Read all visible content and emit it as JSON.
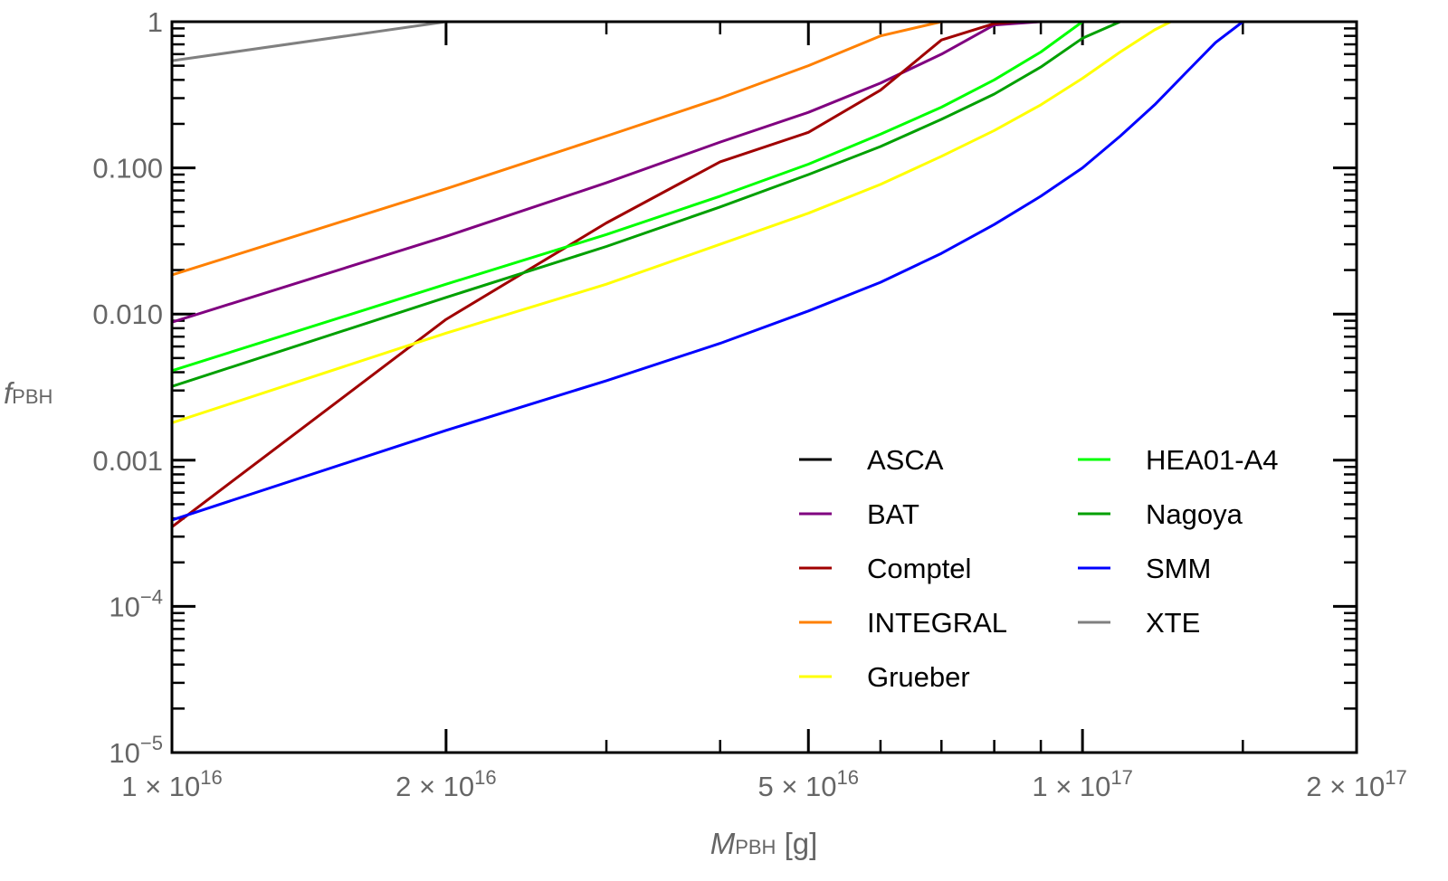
{
  "chart_data": {
    "type": "line",
    "xscale": "log",
    "yscale": "log",
    "xlim": [
      1e+16,
      2e+17
    ],
    "ylim": [
      1e-05,
      1
    ],
    "xlabel": {
      "main": "M",
      "sub": "PBH",
      "unit": " [g]"
    },
    "ylabel": {
      "main": "f",
      "sub": "PBH"
    },
    "xticks": [
      {
        "value": 1e+16,
        "mant": "1",
        "exp": "16"
      },
      {
        "value": 2e+16,
        "mant": "2",
        "exp": "16"
      },
      {
        "value": 5e+16,
        "mant": "5",
        "exp": "16"
      },
      {
        "value": 1e+17,
        "mant": "1",
        "exp": "17"
      },
      {
        "value": 2e+17,
        "mant": "2",
        "exp": "17"
      }
    ],
    "yticks": [
      {
        "value": 1,
        "text": "1"
      },
      {
        "value": 0.1,
        "text": "0.100"
      },
      {
        "value": 0.01,
        "text": "0.010"
      },
      {
        "value": 0.001,
        "text": "0.001"
      },
      {
        "value": 0.0001,
        "base": "10",
        "exp": "−4"
      },
      {
        "value": 1e-05,
        "base": "10",
        "exp": "−5"
      }
    ],
    "legend_position": "bottom-right",
    "series": [
      {
        "name": "ASCA",
        "color": "#000000",
        "x": [],
        "y": []
      },
      {
        "name": "BAT",
        "color": "#800080",
        "x": [
          1e+16,
          2e+16,
          3e+16,
          4e+16,
          5e+16,
          6e+16,
          7e+16,
          8e+16,
          9e+16
        ],
        "y": [
          0.0088,
          0.034,
          0.079,
          0.15,
          0.24,
          0.38,
          0.6,
          0.95,
          1.0
        ]
      },
      {
        "name": "Comptel",
        "color": "#a00000",
        "x": [
          1e+16,
          2e+16,
          3e+16,
          4e+16,
          5e+16,
          6e+16,
          7e+16,
          8e+16,
          8.5e+16
        ],
        "y": [
          0.00035,
          0.0092,
          0.042,
          0.11,
          0.175,
          0.34,
          0.75,
          0.97,
          1.0
        ]
      },
      {
        "name": "INTEGRAL",
        "color": "#ff8000",
        "x": [
          1e+16,
          2e+16,
          3e+16,
          4e+16,
          5e+16,
          6e+16,
          7e+16
        ],
        "y": [
          0.0185,
          0.072,
          0.165,
          0.3,
          0.5,
          0.8,
          1.0
        ]
      },
      {
        "name": "Grueber",
        "color": "#ffff00",
        "x": [
          1e+16,
          2e+16,
          3e+16,
          4e+16,
          5e+16,
          6e+16,
          7e+16,
          8e+16,
          9e+16,
          1e+17,
          1.1e+17,
          1.2e+17,
          1.25e+17
        ],
        "y": [
          0.0018,
          0.0074,
          0.016,
          0.03,
          0.049,
          0.077,
          0.12,
          0.18,
          0.27,
          0.41,
          0.62,
          0.88,
          1.0
        ]
      },
      {
        "name": "HEA01-A4",
        "color": "#00ff00",
        "x": [
          1e+16,
          2e+16,
          3e+16,
          4e+16,
          5e+16,
          6e+16,
          7e+16,
          8e+16,
          9e+16,
          1e+17
        ],
        "y": [
          0.0041,
          0.016,
          0.035,
          0.064,
          0.106,
          0.17,
          0.26,
          0.4,
          0.62,
          1.0
        ]
      },
      {
        "name": "Nagoya",
        "color": "#00a000",
        "x": [
          1e+16,
          2e+16,
          3e+16,
          4e+16,
          5e+16,
          6e+16,
          7e+16,
          8e+16,
          9e+16,
          1e+17,
          1.1e+17
        ],
        "y": [
          0.0032,
          0.013,
          0.029,
          0.054,
          0.09,
          0.14,
          0.215,
          0.32,
          0.49,
          0.77,
          1.0
        ]
      },
      {
        "name": "SMM",
        "color": "#0000ff",
        "x": [
          1e+16,
          2e+16,
          3e+16,
          4e+16,
          5e+16,
          6e+16,
          7e+16,
          8e+16,
          9e+16,
          1e+17,
          1.1e+17,
          1.2e+17,
          1.3e+17,
          1.4e+17,
          1.5e+17
        ],
        "y": [
          0.00039,
          0.0016,
          0.0035,
          0.0063,
          0.0105,
          0.0165,
          0.026,
          0.041,
          0.064,
          0.1,
          0.165,
          0.27,
          0.45,
          0.72,
          1.0
        ]
      },
      {
        "name": "XTE",
        "color": "#808080",
        "x": [
          1e+16,
          2e+16
        ],
        "y": [
          0.54,
          1.0
        ]
      }
    ]
  }
}
